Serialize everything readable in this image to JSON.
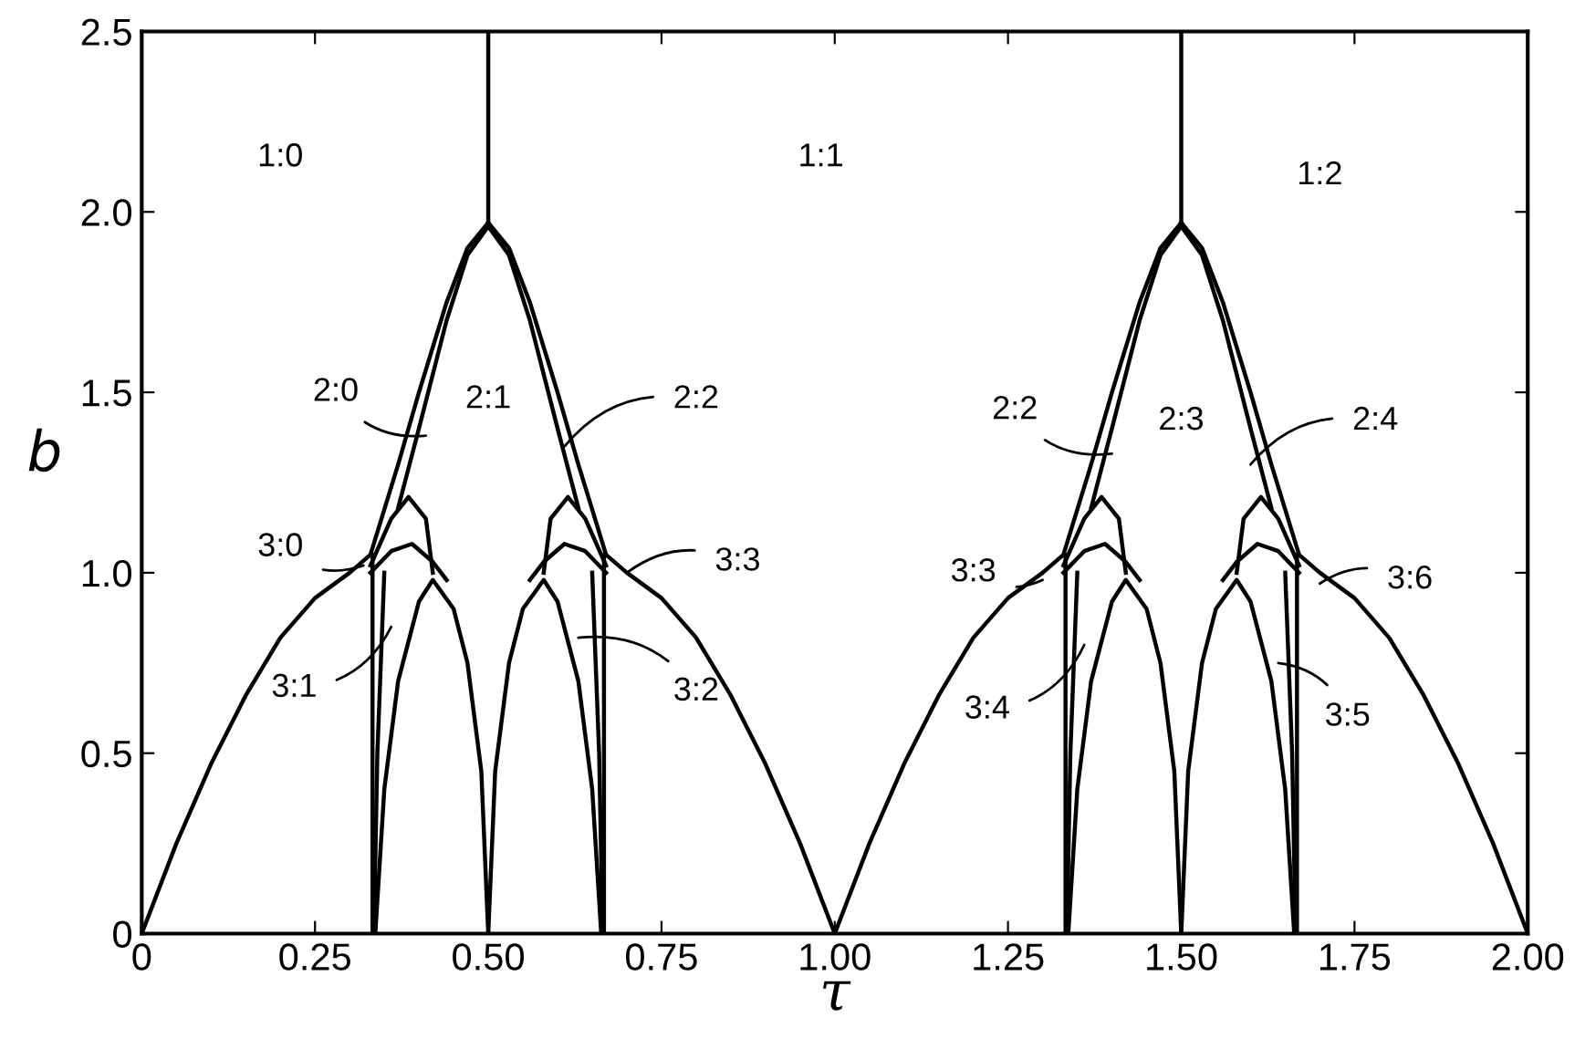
{
  "chart_data": {
    "type": "line",
    "xlabel": "τ",
    "ylabel": "b",
    "xlim": [
      0,
      2
    ],
    "ylim": [
      0,
      2.5
    ],
    "xticks": [
      0,
      {
        "value": 0.25,
        "label": "0.25"
      },
      {
        "value": 0.5,
        "label": "0.50"
      },
      {
        "value": 0.75,
        "label": "0.75"
      },
      {
        "value": 1,
        "label": "1.00"
      },
      {
        "value": 1.25,
        "label": "1.25"
      },
      {
        "value": 1.5,
        "label": "1.50"
      },
      {
        "value": 1.75,
        "label": "1.75"
      },
      {
        "value": 2,
        "label": "2.00"
      }
    ],
    "yticks": [
      0,
      0.5,
      {
        "value": 1,
        "label": "1.0"
      },
      1.5,
      {
        "value": 2,
        "label": "2.0"
      },
      2.5
    ],
    "grid": false,
    "legend": false,
    "marker": "none",
    "line_style": "solid",
    "series": [
      {
        "color": "#000000",
        "x": [
          0,
          0.05,
          0.1,
          0.15,
          0.2,
          0.25,
          0.3,
          0.33,
          0.37,
          0.4,
          0.44,
          0.47,
          0.5
        ],
        "values": [
          0,
          0.25,
          0.47,
          0.66,
          0.82,
          0.93,
          1.0,
          1.05,
          1.3,
          1.5,
          1.75,
          1.9,
          1.97
        ]
      },
      {
        "color": "#000000",
        "x": [
          1,
          0.95,
          0.9,
          0.85,
          0.8,
          0.75,
          0.7,
          0.67,
          0.63,
          0.6,
          0.56,
          0.53,
          0.5
        ],
        "values": [
          0,
          0.25,
          0.47,
          0.66,
          0.82,
          0.93,
          1.0,
          1.05,
          1.3,
          1.5,
          1.75,
          1.9,
          1.97
        ]
      },
      {
        "color": "#000000",
        "x": [
          0.37,
          0.4,
          0.44,
          0.47,
          0.5,
          0.53,
          0.56,
          0.6,
          0.63
        ],
        "values": [
          1.18,
          1.4,
          1.7,
          1.88,
          1.96,
          1.88,
          1.7,
          1.4,
          1.18
        ]
      },
      {
        "color": "#000000",
        "x": [
          0.33,
          0.36,
          0.385,
          0.41,
          0.42
        ],
        "values": [
          1.02,
          1.15,
          1.21,
          1.15,
          1.0
        ]
      },
      {
        "color": "#000000",
        "x": [
          0.58,
          0.59,
          0.615,
          0.64,
          0.67
        ],
        "values": [
          1.0,
          1.15,
          1.21,
          1.15,
          1.02
        ]
      },
      {
        "color": "#000000",
        "x": [
          0.33,
          0.36,
          0.39,
          0.42,
          0.44
        ],
        "values": [
          1.0,
          1.06,
          1.08,
          1.03,
          0.98
        ]
      },
      {
        "color": "#000000",
        "x": [
          0.56,
          0.58,
          0.61,
          0.64,
          0.67
        ],
        "values": [
          0.98,
          1.03,
          1.08,
          1.06,
          1.0
        ]
      },
      {
        "color": "#000000",
        "x": [
          0.333,
          0.333
        ],
        "values": [
          0,
          1.05
        ]
      },
      {
        "color": "#000000",
        "x": [
          0.335,
          0.34,
          0.35
        ],
        "values": [
          0,
          0.5,
          1.0
        ]
      },
      {
        "color": "#000000",
        "x": [
          0.667,
          0.667
        ],
        "values": [
          0,
          1.05
        ]
      },
      {
        "color": "#000000",
        "x": [
          0.665,
          0.66,
          0.65
        ],
        "values": [
          0,
          0.5,
          1.0
        ]
      },
      {
        "color": "#000000",
        "x": [
          0.337,
          0.35,
          0.37,
          0.4,
          0.42,
          0.45,
          0.47,
          0.49,
          0.5
        ],
        "values": [
          0,
          0.4,
          0.7,
          0.92,
          0.98,
          0.9,
          0.75,
          0.45,
          0
        ]
      },
      {
        "color": "#000000",
        "x": [
          0.5,
          0.51,
          0.53,
          0.55,
          0.58,
          0.6,
          0.63,
          0.65,
          0.663
        ],
        "values": [
          0,
          0.45,
          0.75,
          0.9,
          0.98,
          0.92,
          0.7,
          0.4,
          0
        ]
      },
      {
        "color": "#000000",
        "x": [
          0.5,
          0.5,
          0.5
        ],
        "values": [
          1.97,
          2.25,
          2.5
        ]
      },
      {
        "color": "#000000",
        "x": [
          1,
          1.05,
          1.1,
          1.15,
          1.2,
          1.25,
          1.3,
          1.33,
          1.37,
          1.4,
          1.44,
          1.47,
          1.5
        ],
        "values": [
          0,
          0.25,
          0.47,
          0.66,
          0.82,
          0.93,
          1.0,
          1.05,
          1.3,
          1.5,
          1.75,
          1.9,
          1.97
        ]
      },
      {
        "color": "#000000",
        "x": [
          2,
          1.95,
          1.9,
          1.85,
          1.8,
          1.75,
          1.7,
          1.67,
          1.63,
          1.6,
          1.56,
          1.53,
          1.5
        ],
        "values": [
          0,
          0.25,
          0.47,
          0.66,
          0.82,
          0.93,
          1.0,
          1.05,
          1.3,
          1.5,
          1.75,
          1.9,
          1.97
        ]
      },
      {
        "color": "#000000",
        "x": [
          1.37,
          1.4,
          1.44,
          1.47,
          1.5,
          1.53,
          1.56,
          1.6,
          1.63
        ],
        "values": [
          1.18,
          1.4,
          1.7,
          1.88,
          1.96,
          1.88,
          1.7,
          1.4,
          1.18
        ]
      },
      {
        "color": "#000000",
        "x": [
          1.33,
          1.36,
          1.385,
          1.41,
          1.42
        ],
        "values": [
          1.02,
          1.15,
          1.21,
          1.15,
          1.0
        ]
      },
      {
        "color": "#000000",
        "x": [
          1.58,
          1.59,
          1.615,
          1.64,
          1.67
        ],
        "values": [
          1.0,
          1.15,
          1.21,
          1.15,
          1.02
        ]
      },
      {
        "color": "#000000",
        "x": [
          1.33,
          1.36,
          1.39,
          1.42,
          1.44
        ],
        "values": [
          1.0,
          1.06,
          1.08,
          1.03,
          0.98
        ]
      },
      {
        "color": "#000000",
        "x": [
          1.56,
          1.58,
          1.61,
          1.64,
          1.67
        ],
        "values": [
          0.98,
          1.03,
          1.08,
          1.06,
          1.0
        ]
      },
      {
        "color": "#000000",
        "x": [
          1.333,
          1.333
        ],
        "values": [
          0,
          1.05
        ]
      },
      {
        "color": "#000000",
        "x": [
          1.335,
          1.34,
          1.35
        ],
        "values": [
          0,
          0.5,
          1.0
        ]
      },
      {
        "color": "#000000",
        "x": [
          1.667,
          1.667
        ],
        "values": [
          0,
          1.05
        ]
      },
      {
        "color": "#000000",
        "x": [
          1.665,
          1.66,
          1.65
        ],
        "values": [
          0,
          0.5,
          1.0
        ]
      },
      {
        "color": "#000000",
        "x": [
          1.337,
          1.35,
          1.37,
          1.4,
          1.42,
          1.45,
          1.47,
          1.49,
          1.5
        ],
        "values": [
          0,
          0.4,
          0.7,
          0.92,
          0.98,
          0.9,
          0.75,
          0.45,
          0
        ]
      },
      {
        "color": "#000000",
        "x": [
          1.5,
          1.51,
          1.53,
          1.55,
          1.58,
          1.6,
          1.63,
          1.65,
          1.663
        ],
        "values": [
          0,
          0.45,
          0.75,
          0.9,
          0.98,
          0.92,
          0.7,
          0.4,
          0
        ]
      },
      {
        "color": "#000000",
        "x": [
          1.5,
          1.5,
          1.5
        ],
        "values": [
          1.97,
          2.25,
          2.5
        ]
      }
    ],
    "annotations": [
      "1:0",
      "1:1",
      "1:2",
      {
        "text": "2:0",
        "x": 0.41,
        "y": 1.38
      },
      "2:1",
      {
        "text": "2:2",
        "x": 0.61,
        "y": 1.35
      },
      {
        "text": "2:2",
        "x": 1.4,
        "y": 1.33
      },
      "2:3",
      {
        "text": "2:4",
        "x": 1.6,
        "y": 1.3
      },
      {
        "text": "3:0",
        "x": 0.32,
        "y": 1.02
      },
      {
        "text": "3:3",
        "x": 0.7,
        "y": 1.0
      },
      {
        "text": "3:1",
        "x": 0.36,
        "y": 0.85
      },
      {
        "text": "3:2",
        "x": 0.63,
        "y": 0.82
      },
      {
        "text": "3:3",
        "x": 1.3,
        "y": 0.98
      },
      {
        "text": "3:6",
        "x": 1.7,
        "y": 0.97
      },
      {
        "text": "3:4",
        "x": 1.36,
        "y": 0.8
      },
      {
        "text": "3:5",
        "x": 1.64,
        "y": 0.75
      }
    ]
  }
}
